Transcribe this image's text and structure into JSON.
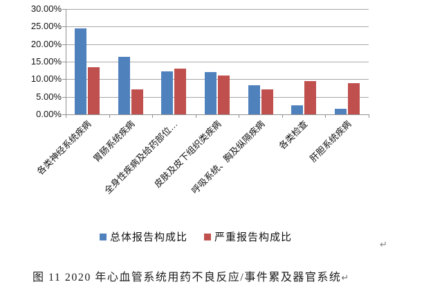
{
  "chart_data": {
    "type": "bar",
    "title": "",
    "xlabel": "",
    "ylabel": "",
    "ylim": [
      0,
      30
    ],
    "grid": true,
    "legend_position": "bottom",
    "y_ticks": [
      "30.00%",
      "25.00%",
      "20.00%",
      "15.00%",
      "10.00%",
      "5.00%",
      "0.00%"
    ],
    "categories": [
      "各类神经系统疾病",
      "胃肠系统疾病",
      "全身性疾病及给药部位…",
      "皮肤及皮下组织类疾病",
      "呼吸系统、胸及纵隔疾病",
      "各类检查",
      "肝胆系统疾病"
    ],
    "series": [
      {
        "name": "总体报告构成比",
        "color": "#4F81BD",
        "values": [
          24.4,
          16.4,
          12.2,
          12.0,
          8.3,
          2.5,
          1.6
        ]
      },
      {
        "name": "严重报告构成比",
        "color": "#C0504D",
        "values": [
          13.5,
          7.1,
          13.0,
          11.1,
          7.1,
          9.4,
          8.9
        ]
      }
    ]
  },
  "caption": {
    "text": "图 11  2020 年心血管系统用药不良反应/事件累及器官系统",
    "return_mark": "↵"
  },
  "page_return_mark": "↵",
  "colors": {
    "gridline": "#a6a6a6",
    "axis": "#8e8e8e",
    "text": "#111111",
    "return_mark": "#7f7f7f",
    "background": "#ffffff"
  }
}
